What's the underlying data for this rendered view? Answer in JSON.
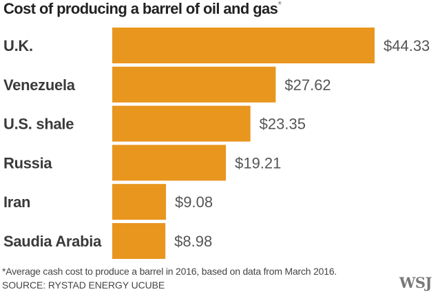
{
  "chart_data": {
    "type": "bar",
    "orientation": "horizontal",
    "title": "Cost of producing a barrel of oil and gas",
    "title_marker": "*",
    "categories": [
      "U.K.",
      "Venezuela",
      "U.S. shale",
      "Russia",
      "Iran",
      "Saudia Arabia"
    ],
    "values": [
      44.33,
      27.62,
      23.35,
      19.21,
      9.08,
      8.98
    ],
    "value_labels": [
      "$44.33",
      "$27.62",
      "$23.35",
      "$19.21",
      "$9.08",
      "$8.98"
    ],
    "bar_color": "#E8961E",
    "grid": false,
    "legend": "none"
  },
  "footnote": "*Average cash cost to produce a barrel in 2016, based on data from March 2016.",
  "source": "SOURCE: RYSTAD ENERGY UCUBE",
  "logo": "WSJ"
}
